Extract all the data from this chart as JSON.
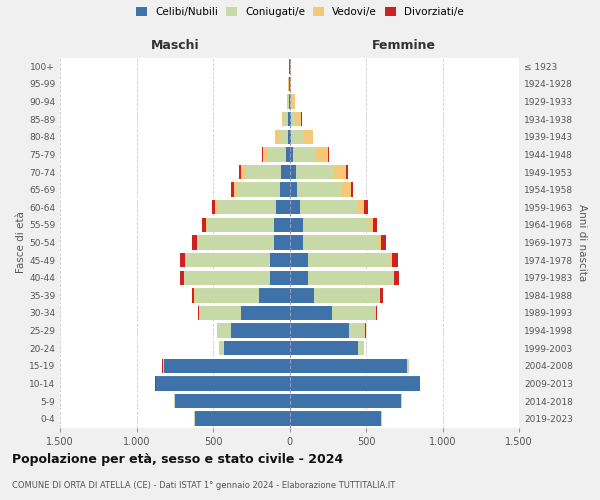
{
  "age_groups": [
    "0-4",
    "5-9",
    "10-14",
    "15-19",
    "20-24",
    "25-29",
    "30-34",
    "35-39",
    "40-44",
    "45-49",
    "50-54",
    "55-59",
    "60-64",
    "65-69",
    "70-74",
    "75-79",
    "80-84",
    "85-89",
    "90-94",
    "95-99",
    "100+"
  ],
  "birth_years": [
    "2019-2023",
    "2014-2018",
    "2009-2013",
    "2004-2008",
    "1999-2003",
    "1994-1998",
    "1989-1993",
    "1984-1988",
    "1979-1983",
    "1974-1978",
    "1969-1973",
    "1964-1968",
    "1959-1963",
    "1954-1958",
    "1949-1953",
    "1944-1948",
    "1939-1943",
    "1934-1938",
    "1929-1933",
    "1924-1928",
    "≤ 1923"
  ],
  "male_celibi": [
    620,
    750,
    870,
    820,
    430,
    380,
    320,
    200,
    130,
    130,
    100,
    100,
    90,
    60,
    55,
    25,
    10,
    8,
    4,
    2,
    2
  ],
  "male_coniugati": [
    2,
    2,
    5,
    8,
    30,
    90,
    270,
    420,
    560,
    550,
    500,
    440,
    380,
    280,
    230,
    120,
    60,
    25,
    8,
    3,
    2
  ],
  "male_vedovi": [
    0,
    0,
    0,
    1,
    2,
    2,
    2,
    2,
    2,
    3,
    5,
    8,
    15,
    25,
    35,
    30,
    25,
    15,
    5,
    2,
    1
  ],
  "male_divorziati": [
    0,
    0,
    1,
    2,
    2,
    5,
    8,
    15,
    25,
    35,
    30,
    25,
    20,
    15,
    10,
    5,
    2,
    2,
    0,
    0,
    0
  ],
  "female_celibi": [
    600,
    730,
    850,
    770,
    450,
    390,
    280,
    160,
    120,
    120,
    90,
    90,
    70,
    50,
    40,
    20,
    12,
    8,
    5,
    2,
    2
  ],
  "female_coniugati": [
    2,
    3,
    5,
    10,
    35,
    100,
    280,
    430,
    560,
    540,
    490,
    430,
    380,
    290,
    250,
    150,
    80,
    30,
    12,
    3,
    2
  ],
  "female_vedovi": [
    0,
    0,
    0,
    1,
    2,
    2,
    3,
    3,
    5,
    8,
    15,
    25,
    40,
    60,
    80,
    80,
    60,
    40,
    18,
    6,
    3
  ],
  "female_divorziati": [
    0,
    0,
    1,
    2,
    3,
    5,
    10,
    15,
    30,
    40,
    35,
    30,
    25,
    15,
    10,
    5,
    3,
    2,
    0,
    0,
    0
  ],
  "colors": {
    "celibi": "#3e72a8",
    "coniugati": "#c8d9a8",
    "vedovi": "#f5c878",
    "divorziati": "#cc2222"
  },
  "xlim": 1500,
  "title": "Popolazione per età, sesso e stato civile - 2024",
  "subtitle": "COMUNE DI ORTA DI ATELLA (CE) - Dati ISTAT 1° gennaio 2024 - Elaborazione TUTTITALIA.IT",
  "xlabel_left": "Maschi",
  "xlabel_right": "Femmine",
  "ylabel_left": "Fasce di età",
  "ylabel_right": "Anni di nascita",
  "xticks": [
    -1500,
    -1000,
    -500,
    0,
    500,
    1000,
    1500
  ],
  "xticklabels": [
    "1.500",
    "1.000",
    "500",
    "0",
    "500",
    "1.000",
    "1.500"
  ],
  "bg_color": "#f0f0f0",
  "plot_bg_color": "#ffffff",
  "grid_color": "#cccccc"
}
